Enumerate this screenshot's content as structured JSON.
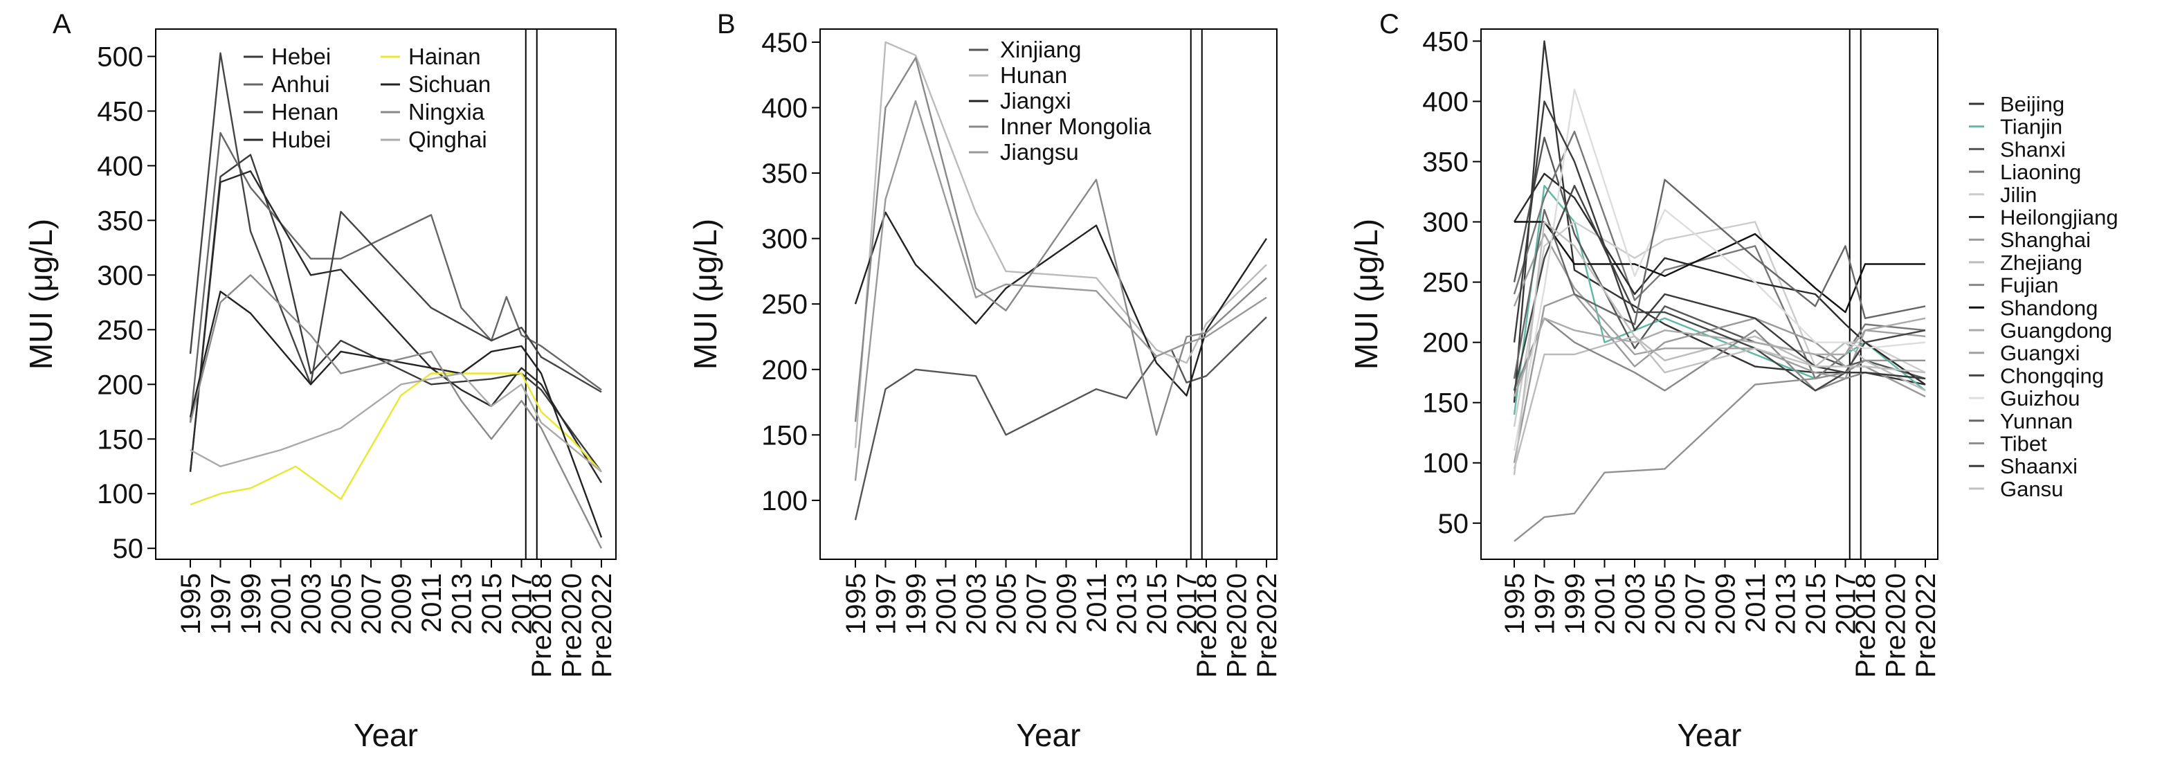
{
  "chart_data": [
    {
      "panel": "A",
      "type": "line",
      "title": "",
      "xlabel": "Year",
      "ylabel": "MUI (μg/L)",
      "ylim": [
        40,
        525
      ],
      "yticks": [
        50,
        100,
        150,
        200,
        250,
        300,
        350,
        400,
        450,
        500
      ],
      "categories": [
        "1995",
        "1997",
        "1999",
        "2001",
        "2003",
        "2005",
        "2007",
        "2009",
        "2011",
        "2013",
        "2015",
        "2017",
        "Pre2018",
        "Pre2020",
        "Pre2022"
      ],
      "grid": false,
      "legend_position": "top",
      "series": [
        {
          "name": "Hebei",
          "color": "#3a3a3a",
          "x": [
            "1995",
            "1997",
            "1999",
            "2001",
            "2003",
            "2005",
            "2011",
            "2015",
            "2017",
            "Pre2018",
            "Pre2022"
          ],
          "values": [
            120,
            390,
            410,
            330,
            210,
            240,
            200,
            205,
            210,
            195,
            120
          ]
        },
        {
          "name": "Anhui",
          "color": "#666666",
          "x": [
            "1995",
            "1997",
            "1999",
            "2003",
            "2005",
            "2011",
            "2013",
            "2015",
            "2016",
            "2017",
            "Pre2018",
            "Pre2022"
          ],
          "values": [
            165,
            430,
            380,
            315,
            315,
            355,
            270,
            240,
            280,
            245,
            235,
            195
          ]
        },
        {
          "name": "Henan",
          "color": "#444444",
          "x": [
            "1995",
            "1997",
            "1999",
            "2003",
            "2005",
            "2011",
            "2015",
            "2017",
            "Pre2018",
            "Pre2022"
          ],
          "values": [
            228,
            503,
            340,
            200,
            358,
            270,
            240,
            252,
            225,
            193
          ]
        },
        {
          "name": "Hubei",
          "color": "#2a2a2a",
          "x": [
            "1995",
            "1997",
            "1999",
            "2003",
            "2005",
            "2011",
            "2013",
            "2015",
            "2017",
            "Pre2018",
            "Pre2022"
          ],
          "values": [
            120,
            385,
            395,
            300,
            305,
            215,
            195,
            180,
            215,
            200,
            110
          ]
        },
        {
          "name": "Hainan",
          "color": "#e8e830",
          "x": [
            "1995",
            "1997",
            "1999",
            "2002",
            "2005",
            "2009",
            "2011",
            "2015",
            "2017",
            "Pre2018",
            "Pre2020",
            "Pre2022"
          ],
          "values": [
            90,
            100,
            105,
            125,
            95,
            190,
            210,
            210,
            210,
            175,
            150,
            120
          ]
        },
        {
          "name": "Sichuan",
          "color": "#222222",
          "x": [
            "1995",
            "1997",
            "1999",
            "2003",
            "2005",
            "2011",
            "2013",
            "2015",
            "2017",
            "Pre2018",
            "Pre2022"
          ],
          "values": [
            170,
            285,
            265,
            200,
            230,
            215,
            210,
            230,
            235,
            210,
            60
          ]
        },
        {
          "name": "Ningxia",
          "color": "#8a8a8a",
          "x": [
            "1995",
            "1997",
            "1999",
            "2003",
            "2005",
            "2011",
            "2013",
            "2015",
            "2017",
            "Pre2018",
            "Pre2022"
          ],
          "values": [
            165,
            275,
            300,
            245,
            210,
            230,
            185,
            150,
            185,
            160,
            50
          ]
        },
        {
          "name": "Qinghai",
          "color": "#aaaaaa",
          "x": [
            "1995",
            "1997",
            "2001",
            "2005",
            "2009",
            "2013",
            "2015",
            "2017",
            "Pre2018",
            "Pre2022"
          ],
          "values": [
            140,
            125,
            140,
            160,
            200,
            210,
            180,
            200,
            165,
            120
          ]
        }
      ]
    },
    {
      "panel": "B",
      "type": "line",
      "title": "",
      "xlabel": "Year",
      "ylabel": "MUI (μg/L)",
      "ylim": [
        55,
        460
      ],
      "yticks": [
        100,
        150,
        200,
        250,
        300,
        350,
        400,
        450
      ],
      "categories": [
        "1995",
        "1997",
        "1999",
        "2001",
        "2003",
        "2005",
        "2007",
        "2009",
        "2011",
        "2013",
        "2015",
        "2017",
        "Pre2018",
        "Pre2020",
        "Pre2022"
      ],
      "grid": false,
      "legend_position": "top",
      "series": [
        {
          "name": "Xinjiang",
          "color": "#555555",
          "x": [
            "1995",
            "1997",
            "1999",
            "2003",
            "2005",
            "2011",
            "2013",
            "2015",
            "2016",
            "2017",
            "Pre2018",
            "Pre2022"
          ],
          "values": [
            85,
            185,
            200,
            195,
            150,
            185,
            178,
            210,
            215,
            190,
            195,
            240
          ]
        },
        {
          "name": "Hunan",
          "color": "#bbbbbb",
          "x": [
            "1995",
            "1997",
            "1999",
            "2003",
            "2005",
            "2011",
            "2015",
            "2017",
            "Pre2018",
            "Pre2022"
          ],
          "values": [
            140,
            450,
            440,
            320,
            275,
            270,
            215,
            205,
            235,
            280
          ]
        },
        {
          "name": "Jiangxi",
          "color": "#222222",
          "x": [
            "1995",
            "1997",
            "1999",
            "2003",
            "2005",
            "2011",
            "2015",
            "2017",
            "Pre2018",
            "Pre2022"
          ],
          "values": [
            250,
            320,
            280,
            235,
            262,
            310,
            205,
            180,
            230,
            300
          ]
        },
        {
          "name": "Inner Mongolia",
          "color": "#888888",
          "x": [
            "1995",
            "1997",
            "1999",
            "2003",
            "2005",
            "2011",
            "2015",
            "2017",
            "Pre2018",
            "Pre2022"
          ],
          "values": [
            160,
            400,
            438,
            262,
            245,
            345,
            150,
            225,
            228,
            270
          ]
        },
        {
          "name": "Jiangsu",
          "color": "#999999",
          "x": [
            "1995",
            "1997",
            "1999",
            "2003",
            "2005",
            "2011",
            "2015",
            "2017",
            "Pre2018",
            "Pre2022"
          ],
          "values": [
            115,
            330,
            405,
            255,
            265,
            260,
            210,
            220,
            225,
            255
          ]
        }
      ]
    },
    {
      "panel": "C",
      "type": "line",
      "title": "",
      "xlabel": "Year",
      "ylabel": "MUI (μg/L)",
      "ylim": [
        20,
        460
      ],
      "yticks": [
        50,
        100,
        150,
        200,
        250,
        300,
        350,
        400,
        450
      ],
      "categories": [
        "1995",
        "1997",
        "1999",
        "2001",
        "2003",
        "2005",
        "2007",
        "2009",
        "2011",
        "2013",
        "2015",
        "2017",
        "Pre2018",
        "Pre2020",
        "Pre2022"
      ],
      "grid": false,
      "legend_position": "right",
      "series": [
        {
          "name": "Beijing",
          "color": "#333333",
          "x": [
            "1995",
            "1997",
            "1999",
            "2003",
            "2005",
            "2011",
            "2015",
            "2017",
            "Pre2018",
            "Pre2022"
          ],
          "values": [
            150,
            450,
            260,
            230,
            215,
            180,
            175,
            175,
            175,
            165
          ]
        },
        {
          "name": "Tianjin",
          "color": "#5fb8a4",
          "x": [
            "1995",
            "1997",
            "1999",
            "2001",
            "2005",
            "2011",
            "2015",
            "2017",
            "Pre2018",
            "Pre2022"
          ],
          "values": [
            140,
            330,
            300,
            200,
            220,
            190,
            170,
            190,
            200,
            160
          ]
        },
        {
          "name": "Shanxi",
          "color": "#555555",
          "x": [
            "1995",
            "1997",
            "1999",
            "2003",
            "2005",
            "2011",
            "2015",
            "2017",
            "Pre2018",
            "Pre2022"
          ],
          "values": [
            250,
            370,
            290,
            195,
            230,
            200,
            190,
            180,
            185,
            170
          ]
        },
        {
          "name": "Liaoning",
          "color": "#777777",
          "x": [
            "1995",
            "1997",
            "1999",
            "2003",
            "2005",
            "2011",
            "2015",
            "2017",
            "Pre2018",
            "Pre2022"
          ],
          "values": [
            240,
            320,
            375,
            235,
            260,
            280,
            170,
            190,
            215,
            210
          ]
        },
        {
          "name": "Jilin",
          "color": "#cccccc",
          "x": [
            "1995",
            "1997",
            "1999",
            "2003",
            "2005",
            "2011",
            "2015",
            "2017",
            "Pre2018",
            "Pre2022"
          ],
          "values": [
            130,
            280,
            300,
            270,
            285,
            300,
            180,
            200,
            200,
            175
          ]
        },
        {
          "name": "Heilongjiang",
          "color": "#2a2a2a",
          "x": [
            "1995",
            "1997",
            "1999",
            "2003",
            "2005",
            "2011",
            "2015",
            "2017",
            "Pre2018",
            "Pre2022"
          ],
          "values": [
            300,
            340,
            320,
            240,
            270,
            250,
            240,
            215,
            200,
            165
          ]
        },
        {
          "name": "Shanghai",
          "color": "#999999",
          "x": [
            "1995",
            "1997",
            "1999",
            "2003",
            "2005",
            "2011",
            "2015",
            "2017",
            "Pre2018",
            "Pre2022"
          ],
          "values": [
            100,
            230,
            240,
            180,
            200,
            220,
            200,
            180,
            180,
            155
          ]
        },
        {
          "name": "Zhejiang",
          "color": "#bbbbbb",
          "x": [
            "1995",
            "1997",
            "1999",
            "2003",
            "2005",
            "2011",
            "2015",
            "2017",
            "Pre2018",
            "Pre2022"
          ],
          "values": [
            95,
            190,
            190,
            205,
            185,
            205,
            180,
            200,
            185,
            160
          ]
        },
        {
          "name": "Fujian",
          "color": "#888888",
          "x": [
            "1995",
            "1997",
            "1999",
            "2003",
            "2005",
            "2011",
            "2015",
            "2017",
            "Pre2018",
            "Pre2022"
          ],
          "values": [
            160,
            220,
            200,
            175,
            160,
            210,
            160,
            170,
            175,
            170
          ]
        },
        {
          "name": "Shandong",
          "color": "#111111",
          "x": [
            "1995",
            "1997",
            "1999",
            "2003",
            "2005",
            "2011",
            "2015",
            "2017",
            "Pre2018",
            "Pre2022"
          ],
          "values": [
            300,
            300,
            265,
            265,
            255,
            290,
            245,
            225,
            265,
            265
          ]
        },
        {
          "name": "Guangdong",
          "color": "#aaaaaa",
          "x": [
            "1995",
            "1997",
            "1999",
            "2003",
            "2005",
            "2011",
            "2015",
            "2017",
            "Pre2018",
            "Pre2022"
          ],
          "values": [
            155,
            220,
            210,
            200,
            210,
            200,
            190,
            190,
            210,
            220
          ]
        },
        {
          "name": "Guangxi",
          "color": "#a0a0a0",
          "x": [
            "1995",
            "1997",
            "1999",
            "2003",
            "2005",
            "2011",
            "2015",
            "2017",
            "Pre2018",
            "Pre2022"
          ],
          "values": [
            230,
            290,
            245,
            190,
            195,
            195,
            175,
            170,
            210,
            205
          ]
        },
        {
          "name": "Chongqing",
          "color": "#444444",
          "x": [
            "1995",
            "1997",
            "1999",
            "2003",
            "2005",
            "2011",
            "2015",
            "2017",
            "Pre2018",
            "Pre2022"
          ],
          "values": [
            160,
            270,
            330,
            225,
            225,
            195,
            160,
            175,
            200,
            210
          ]
        },
        {
          "name": "Guizhou",
          "color": "#dddddd",
          "x": [
            "1995",
            "1997",
            "1999",
            "2003",
            "2005",
            "2011",
            "2015",
            "2017",
            "Pre2018",
            "Pre2022"
          ],
          "values": [
            110,
            245,
            410,
            255,
            310,
            250,
            200,
            200,
            195,
            200
          ]
        },
        {
          "name": "Yunnan",
          "color": "#666666",
          "x": [
            "1995",
            "1997",
            "1999",
            "2003",
            "2005",
            "2011",
            "2015",
            "2017",
            "Pre2018",
            "Pre2022"
          ],
          "values": [
            170,
            310,
            240,
            215,
            335,
            270,
            230,
            280,
            220,
            230
          ]
        },
        {
          "name": "Tibet",
          "color": "#909090",
          "x": [
            "1995",
            "1997",
            "1999",
            "2001",
            "2005",
            "2011",
            "2015",
            "2017",
            "Pre2018",
            "Pre2022"
          ],
          "values": [
            35,
            55,
            58,
            92,
            95,
            165,
            170,
            175,
            185,
            185
          ]
        },
        {
          "name": "Shaanxi",
          "color": "#3a3a3a",
          "x": [
            "1995",
            "1997",
            "1999",
            "2003",
            "2005",
            "2011",
            "2015",
            "2017",
            "Pre2018",
            "Pre2022"
          ],
          "values": [
            200,
            400,
            350,
            210,
            240,
            220,
            180,
            175,
            175,
            170
          ]
        },
        {
          "name": "Gansu",
          "color": "#c0c0c0",
          "x": [
            "1995",
            "1997",
            "1999",
            "2003",
            "2005",
            "2011",
            "2015",
            "2017",
            "Pre2018",
            "Pre2022"
          ],
          "values": [
            90,
            300,
            280,
            205,
            175,
            195,
            180,
            180,
            180,
            175
          ]
        }
      ]
    }
  ]
}
